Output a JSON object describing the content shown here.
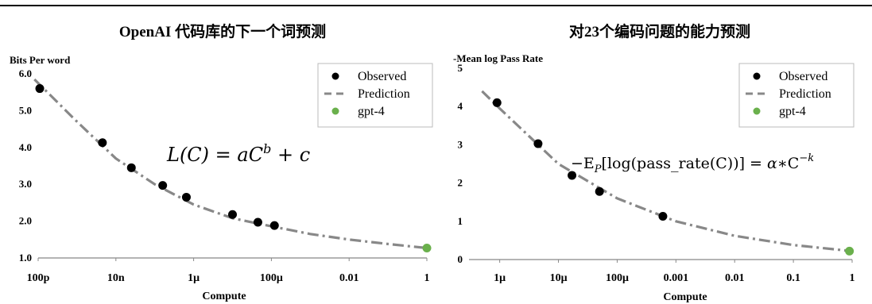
{
  "chart_data": [
    {
      "type": "scatter",
      "title": "OpenAI 代码库的下一个词预测",
      "ylabel": "Bits Per word",
      "xlabel": "Compute",
      "x_scale": "log",
      "xlim": [
        1e-10,
        1
      ],
      "ylim": [
        1.0,
        6.0
      ],
      "y_ticks": [
        "1.0",
        "2.0",
        "3.0",
        "4.0",
        "5.0",
        "6.0"
      ],
      "x_ticks": [
        {
          "value": 1e-10,
          "label": "100p"
        },
        {
          "value": 1e-08,
          "label": "10n"
        },
        {
          "value": 1e-06,
          "label": "1μ"
        },
        {
          "value": 0.0001,
          "label": "100μ"
        },
        {
          "value": 0.01,
          "label": "0.01"
        },
        {
          "value": 1,
          "label": "1"
        }
      ],
      "annotation": "L(C) = aC^b + c",
      "legend": {
        "placement": "top-right",
        "entries": [
          "Observed",
          "Prediction",
          "gpt-4"
        ]
      },
      "series": [
        {
          "name": "Observed",
          "marker": "dot",
          "color": "#000000",
          "points": [
            [
              1.1e-10,
              5.6
            ],
            [
              4.5e-09,
              4.13
            ],
            [
              2.5e-08,
              3.45
            ],
            [
              1.6e-07,
              2.97
            ],
            [
              6.5e-07,
              2.65
            ],
            [
              1e-05,
              2.18
            ],
            [
              4.5e-05,
              1.97
            ],
            [
              0.00012,
              1.88
            ]
          ]
        },
        {
          "name": "Prediction",
          "style": "dashdot",
          "color": "#888888",
          "points": [
            [
              8e-11,
              5.85
            ],
            [
              1e-09,
              4.7
            ],
            [
              1e-08,
              3.7
            ],
            [
              1e-07,
              3.0
            ],
            [
              1e-06,
              2.45
            ],
            [
              1e-05,
              2.08
            ],
            [
              0.0001,
              1.86
            ],
            [
              0.001,
              1.65
            ],
            [
              0.01,
              1.5
            ],
            [
              0.1,
              1.38
            ],
            [
              1,
              1.27
            ]
          ]
        },
        {
          "name": "gpt-4",
          "marker": "dot",
          "color": "#6ab04c",
          "points": [
            [
              1,
              1.27
            ]
          ]
        }
      ]
    },
    {
      "type": "scatter",
      "title": "对23个编码问题的能力预测",
      "ylabel": "-Mean log Pass Rate",
      "xlabel": "Compute",
      "x_scale": "log",
      "xlim": [
        3e-07,
        1
      ],
      "ylim": [
        0,
        5
      ],
      "y_ticks": [
        "0",
        "1",
        "2",
        "3",
        "4",
        "5"
      ],
      "x_ticks": [
        {
          "value": 1e-06,
          "label": "1μ"
        },
        {
          "value": 1e-05,
          "label": "10μ"
        },
        {
          "value": 0.0001,
          "label": "100μ"
        },
        {
          "value": 0.001,
          "label": "0.001"
        },
        {
          "value": 0.01,
          "label": "0.01"
        },
        {
          "value": 0.1,
          "label": "0.1"
        },
        {
          "value": 1,
          "label": "1"
        }
      ],
      "annotation": "−E_P[log(pass_rate(C))] = α∗C^−k",
      "legend": {
        "placement": "top-right",
        "entries": [
          "Observed",
          "Prediction",
          "gpt-4"
        ]
      },
      "series": [
        {
          "name": "Observed",
          "marker": "dot",
          "color": "#000000",
          "points": [
            [
              9e-07,
              4.1
            ],
            [
              4.5e-06,
              3.03
            ],
            [
              1.7e-05,
              2.2
            ],
            [
              5e-05,
              1.78
            ],
            [
              0.0006,
              1.13
            ]
          ]
        },
        {
          "name": "Prediction",
          "style": "dashdot",
          "color": "#888888",
          "points": [
            [
              5e-07,
              4.4
            ],
            [
              1e-06,
              3.95
            ],
            [
              1e-05,
              2.5
            ],
            [
              0.0001,
              1.6
            ],
            [
              0.001,
              1.0
            ],
            [
              0.01,
              0.62
            ],
            [
              0.1,
              0.38
            ],
            [
              1,
              0.22
            ]
          ]
        },
        {
          "name": "gpt-4",
          "marker": "dot",
          "color": "#6ab04c",
          "points": [
            [
              0.9,
              0.22
            ]
          ]
        }
      ]
    }
  ]
}
